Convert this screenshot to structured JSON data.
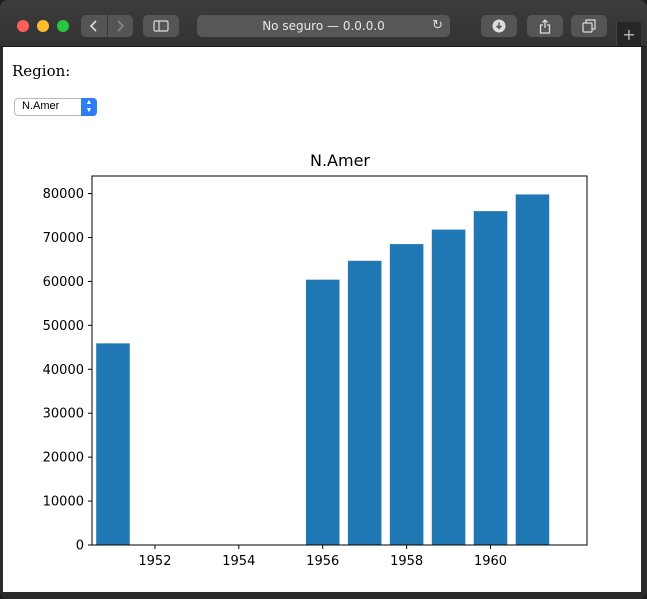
{
  "browser": {
    "address_text": "No seguro — 0.0.0.0",
    "new_tab_label": "+"
  },
  "form": {
    "region_label": "Region:",
    "region_selected": "N.Amer"
  },
  "colors": {
    "bar": "#1f77b4",
    "select_accent": "#2f7df6"
  },
  "chart_data": {
    "type": "bar",
    "title": "N.Amer",
    "xlabel": "",
    "ylabel": "",
    "x": [
      1951,
      1956,
      1957,
      1958,
      1959,
      1960,
      1961
    ],
    "values": [
      45900,
      60400,
      64700,
      68500,
      71800,
      76000,
      79800
    ],
    "xlim": [
      1950.5,
      1962.3
    ],
    "ylim": [
      0,
      84000
    ],
    "xticks": [
      1952,
      1954,
      1956,
      1958,
      1960
    ],
    "yticks": [
      0,
      10000,
      20000,
      30000,
      40000,
      50000,
      60000,
      70000,
      80000
    ],
    "grid": false
  }
}
